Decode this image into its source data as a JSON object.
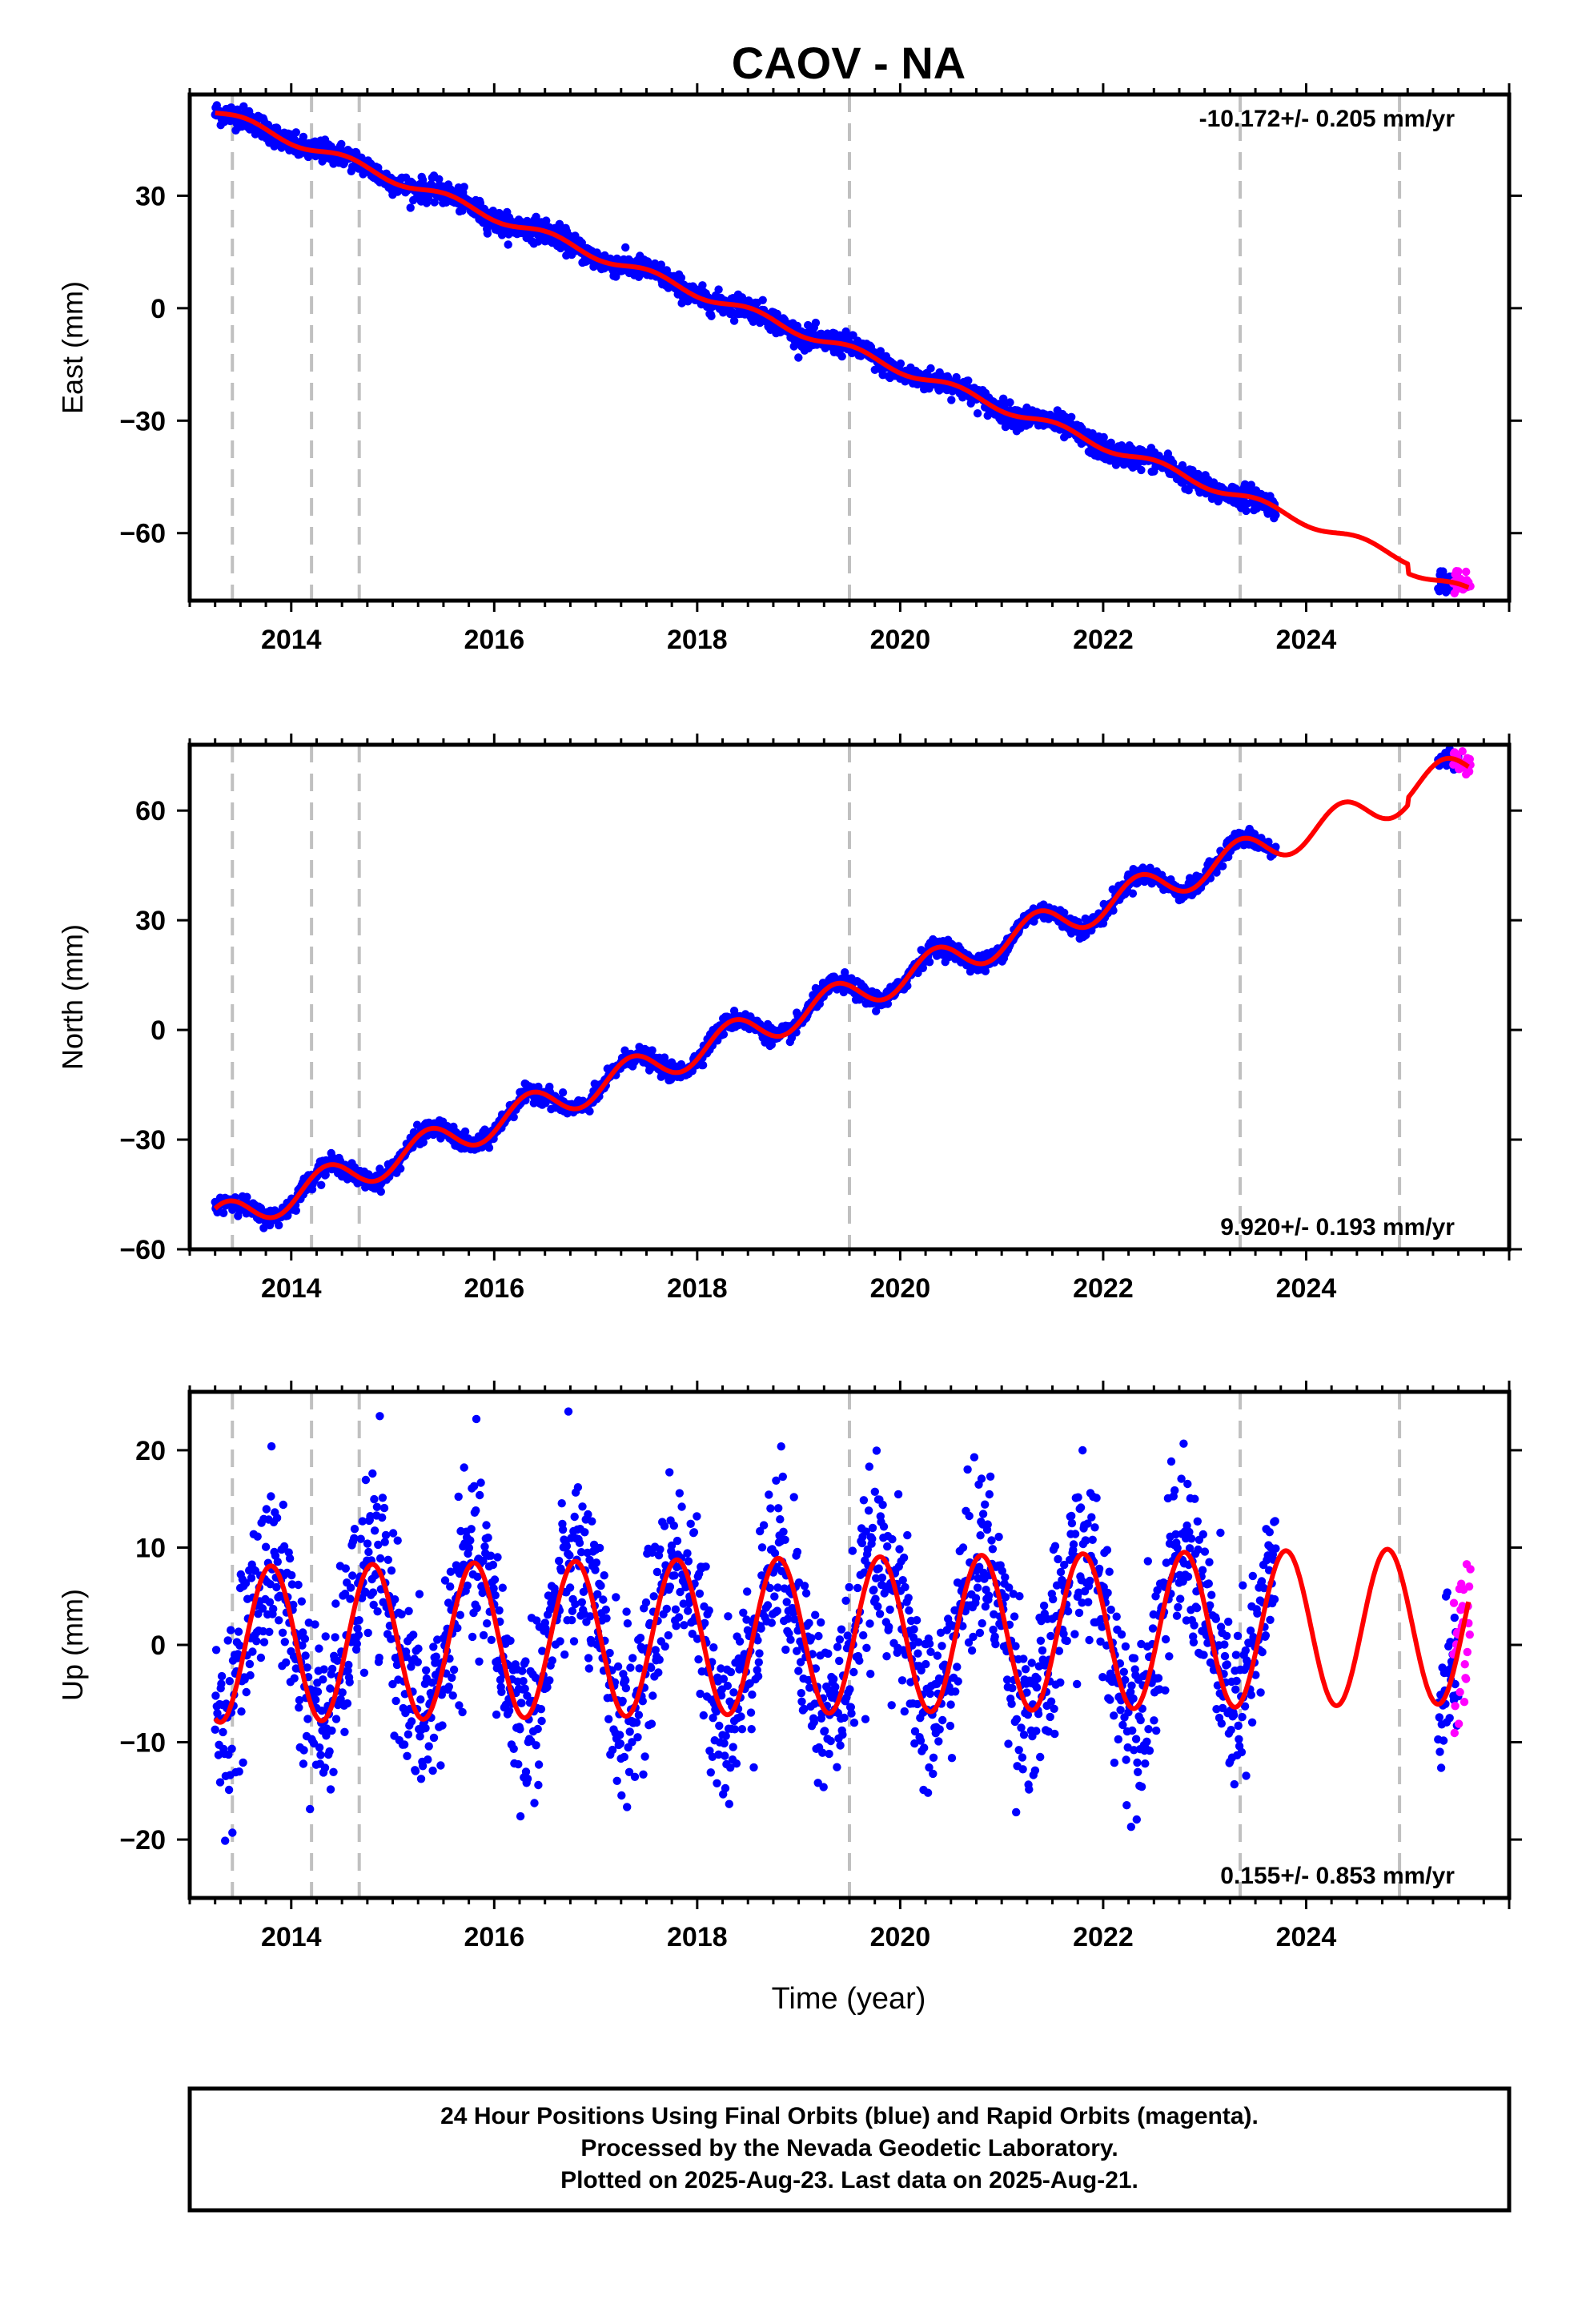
{
  "chart_data": {
    "type": "scatter",
    "title": "CAOV - NA",
    "xlabel": "Time (year)",
    "xlim": [
      2013.0,
      2026.0
    ],
    "x_ticks": [
      "2014",
      "2016",
      "2018",
      "2020",
      "2022",
      "2024"
    ],
    "x_tick_values": [
      2014,
      2016,
      2018,
      2020,
      2022,
      2024
    ],
    "reference_lines": [
      2013.42,
      2014.2,
      2014.67,
      2019.5,
      2023.35,
      2024.92
    ],
    "series_colors": {
      "final": "#0000ff",
      "rapid": "#ff00ff",
      "model": "#ff0000",
      "reference": "#c0c0c0"
    },
    "panels": [
      {
        "name": "east",
        "ylabel": "East (mm)",
        "ylim": [
          -78,
          57
        ],
        "y_ticks": [
          "30",
          "0",
          "−30",
          "−60"
        ],
        "y_tick_values": [
          30,
          0,
          -30,
          -60
        ],
        "rate_label": "-10.172+/- 0.205 mm/yr",
        "rate_position": "top-right",
        "velocity": -10.172,
        "intercept_2013": 55,
        "annual_amplitude": 1.2,
        "annual_phase": 0.3,
        "noise": 1.5,
        "offsets": [
          [
            2025.0,
            -2.5
          ]
        ],
        "final_range": [
          2013.25,
          2023.7
        ],
        "final_range2": [
          2025.3,
          2025.5
        ],
        "rapid_range": [
          2025.45,
          2025.62
        ],
        "model_range": [
          2013.25,
          2025.6
        ]
      },
      {
        "name": "north",
        "ylabel": "North (mm)",
        "ylim": [
          -60,
          78
        ],
        "y_ticks": [
          "60",
          "30",
          "0",
          "−30",
          "−60"
        ],
        "y_tick_values": [
          60,
          30,
          0,
          -30,
          -60
        ],
        "rate_label": "9.920+/- 0.193 mm/yr",
        "rate_position": "bottom-right",
        "velocity": 9.92,
        "intercept_2013": -55,
        "annual_amplitude": 4.5,
        "annual_phase": 0.1,
        "noise": 1.2,
        "offsets": [
          [
            2025.0,
            2.0
          ]
        ],
        "final_range": [
          2013.25,
          2023.7
        ],
        "final_range2": [
          2025.3,
          2025.5
        ],
        "rapid_range": [
          2025.45,
          2025.62
        ],
        "model_range": [
          2013.25,
          2025.6
        ]
      },
      {
        "name": "up",
        "ylabel": "Up (mm)",
        "ylim": [
          -26,
          26
        ],
        "y_ticks": [
          "20",
          "10",
          "0",
          "−10",
          "−20"
        ],
        "y_tick_values": [
          20,
          10,
          0,
          -10,
          -20
        ],
        "rate_label": "0.155+/- 0.853 mm/yr",
        "rate_position": "bottom-right",
        "velocity": 0.155,
        "intercept_2013": 0,
        "annual_amplitude": 8.0,
        "annual_phase": 0.55,
        "noise": 4.5,
        "offsets": [],
        "final_range": [
          2013.25,
          2023.7
        ],
        "final_range2": [
          2025.3,
          2025.5
        ],
        "rapid_range": [
          2025.45,
          2025.62
        ],
        "model_range": [
          2013.25,
          2025.6
        ]
      }
    ]
  },
  "footer": {
    "line1": "24 Hour Positions Using Final Orbits (blue) and Rapid Orbits (magenta).",
    "line2": "Processed by the Nevada Geodetic Laboratory.",
    "line3": "Plotted on 2025-Aug-23. Last data on 2025-Aug-21."
  }
}
